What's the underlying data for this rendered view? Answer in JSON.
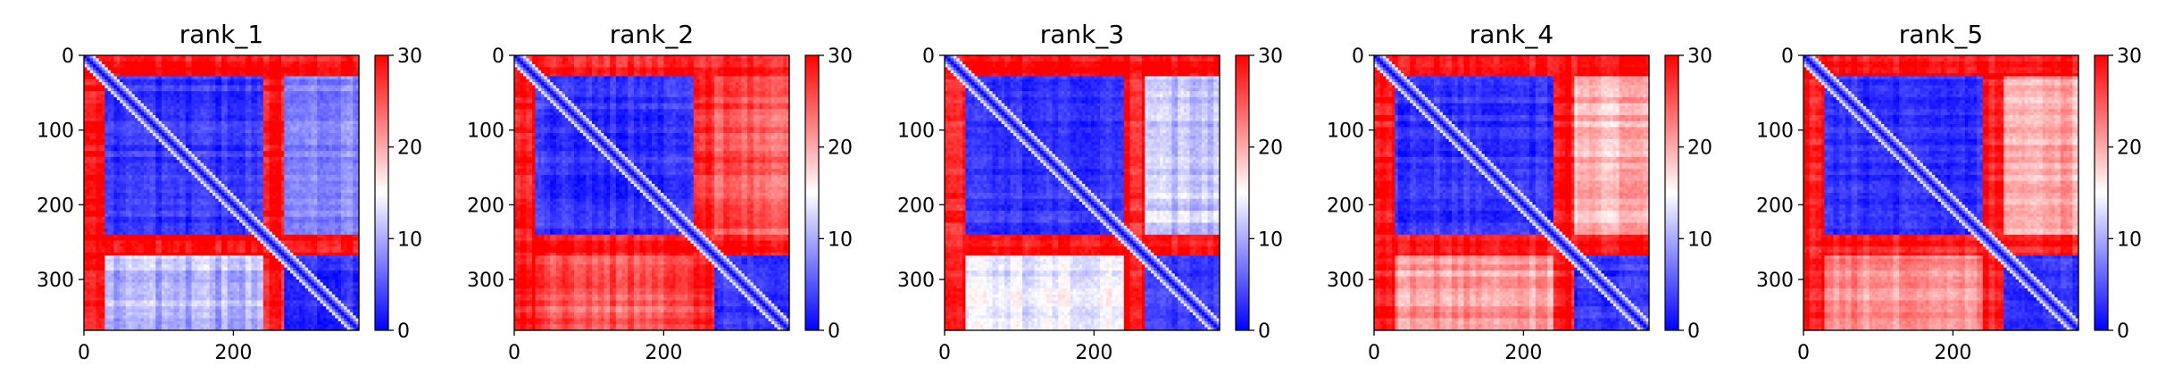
{
  "chart_data": [
    {
      "type": "heatmap",
      "title": "rank_1",
      "xlim": [
        0,
        368
      ],
      "ylim": [
        368,
        0
      ],
      "xticks": [
        0,
        200
      ],
      "yticks": [
        0,
        100,
        200,
        300
      ],
      "colorbar": {
        "range": [
          0,
          30
        ],
        "ticks": [
          0,
          10,
          20,
          30
        ],
        "colors": [
          "#0000ff",
          "#ffffff",
          "#ff0000"
        ]
      },
      "domain_boundaries": [
        30,
        240,
        270
      ],
      "blocks": [
        {
          "rows": [
            30,
            240
          ],
          "cols": [
            30,
            240
          ],
          "value": 3
        },
        {
          "rows": [
            30,
            240
          ],
          "cols": [
            270,
            368
          ],
          "value": 8
        },
        {
          "rows": [
            270,
            368
          ],
          "cols": [
            30,
            240
          ],
          "value": 11
        },
        {
          "rows": [
            270,
            368
          ],
          "cols": [
            270,
            368
          ],
          "value": 3
        }
      ],
      "default_value": 29
    },
    {
      "type": "heatmap",
      "title": "rank_2",
      "xlim": [
        0,
        368
      ],
      "ylim": [
        368,
        0
      ],
      "xticks": [
        0,
        200
      ],
      "yticks": [
        0,
        100,
        200,
        300
      ],
      "colorbar": {
        "range": [
          0,
          30
        ],
        "ticks": [
          0,
          10,
          20,
          30
        ],
        "colors": [
          "#0000ff",
          "#ffffff",
          "#ff0000"
        ]
      },
      "domain_boundaries": [
        30,
        240,
        270
      ],
      "blocks": [
        {
          "rows": [
            30,
            240
          ],
          "cols": [
            30,
            240
          ],
          "value": 3
        },
        {
          "rows": [
            30,
            240
          ],
          "cols": [
            270,
            368
          ],
          "value": 25
        },
        {
          "rows": [
            270,
            368
          ],
          "cols": [
            30,
            240
          ],
          "value": 25
        },
        {
          "rows": [
            270,
            368
          ],
          "cols": [
            270,
            368
          ],
          "value": 3
        }
      ],
      "default_value": 29
    },
    {
      "type": "heatmap",
      "title": "rank_3",
      "xlim": [
        0,
        368
      ],
      "ylim": [
        368,
        0
      ],
      "xticks": [
        0,
        200
      ],
      "yticks": [
        0,
        100,
        200,
        300
      ],
      "colorbar": {
        "range": [
          0,
          30
        ],
        "ticks": [
          0,
          10,
          20,
          30
        ],
        "colors": [
          "#0000ff",
          "#ffffff",
          "#ff0000"
        ]
      },
      "domain_boundaries": [
        30,
        240,
        270
      ],
      "blocks": [
        {
          "rows": [
            30,
            240
          ],
          "cols": [
            30,
            240
          ],
          "value": 3
        },
        {
          "rows": [
            30,
            240
          ],
          "cols": [
            270,
            368
          ],
          "value": 12
        },
        {
          "rows": [
            270,
            368
          ],
          "cols": [
            30,
            240
          ],
          "value": 13
        },
        {
          "rows": [
            270,
            368
          ],
          "cols": [
            270,
            368
          ],
          "value": 3
        }
      ],
      "default_value": 29
    },
    {
      "type": "heatmap",
      "title": "rank_4",
      "xlim": [
        0,
        368
      ],
      "ylim": [
        368,
        0
      ],
      "xticks": [
        0,
        200
      ],
      "yticks": [
        0,
        100,
        200,
        300
      ],
      "colorbar": {
        "range": [
          0,
          30
        ],
        "ticks": [
          0,
          10,
          20,
          30
        ],
        "colors": [
          "#0000ff",
          "#ffffff",
          "#ff0000"
        ]
      },
      "domain_boundaries": [
        30,
        240,
        270
      ],
      "blocks": [
        {
          "rows": [
            30,
            240
          ],
          "cols": [
            30,
            240
          ],
          "value": 3
        },
        {
          "rows": [
            30,
            240
          ],
          "cols": [
            270,
            368
          ],
          "value": 19
        },
        {
          "rows": [
            270,
            368
          ],
          "cols": [
            30,
            240
          ],
          "value": 21
        },
        {
          "rows": [
            270,
            368
          ],
          "cols": [
            270,
            368
          ],
          "value": 3
        }
      ],
      "default_value": 29
    },
    {
      "type": "heatmap",
      "title": "rank_5",
      "xlim": [
        0,
        368
      ],
      "ylim": [
        368,
        0
      ],
      "xticks": [
        0,
        200
      ],
      "yticks": [
        0,
        100,
        200,
        300
      ],
      "colorbar": {
        "range": [
          0,
          30
        ],
        "ticks": [
          0,
          10,
          20,
          30
        ],
        "colors": [
          "#0000ff",
          "#ffffff",
          "#ff0000"
        ]
      },
      "domain_boundaries": [
        30,
        240,
        270
      ],
      "blocks": [
        {
          "rows": [
            30,
            240
          ],
          "cols": [
            30,
            240
          ],
          "value": 3
        },
        {
          "rows": [
            30,
            240
          ],
          "cols": [
            270,
            368
          ],
          "value": 20
        },
        {
          "rows": [
            270,
            368
          ],
          "cols": [
            30,
            240
          ],
          "value": 22
        },
        {
          "rows": [
            270,
            368
          ],
          "cols": [
            270,
            368
          ],
          "value": 3
        }
      ],
      "default_value": 29
    }
  ]
}
